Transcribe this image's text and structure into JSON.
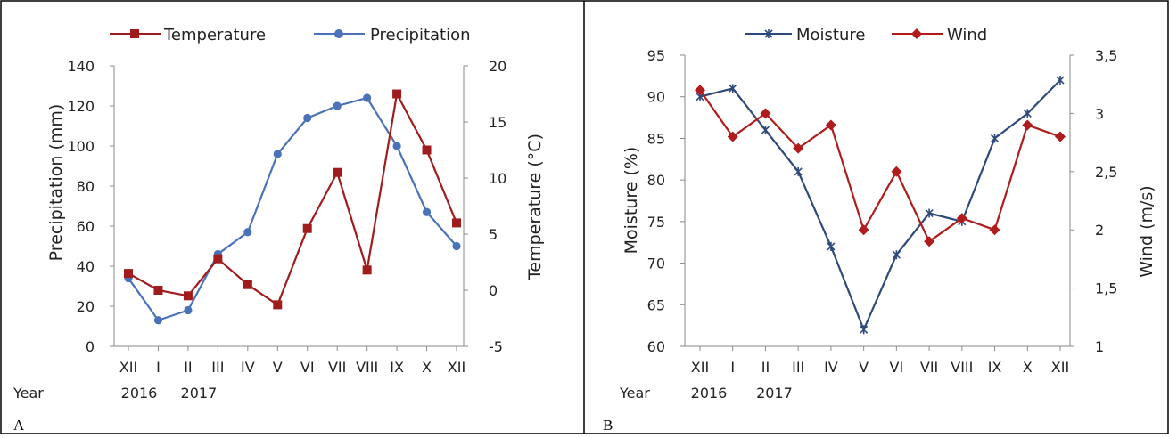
{
  "panels": [
    {
      "letter": "A",
      "legend": [
        {
          "label": "Temperature",
          "color": "#A01C1C",
          "marker": "square"
        },
        {
          "label": "Precipitation",
          "color": "#4A72B8",
          "marker": "circle"
        }
      ],
      "left_axis": {
        "title": "Precipitation (mm)",
        "ticks": [
          "0",
          "20",
          "40",
          "60",
          "80",
          "100",
          "120",
          "140"
        ]
      },
      "right_axis": {
        "title": "Temperature (°C)",
        "ticks": [
          "-5",
          "0",
          "5",
          "10",
          "15",
          "20"
        ]
      },
      "months": [
        "XII",
        "I",
        "II",
        "III",
        "IV",
        "V",
        "VI",
        "VII",
        "VIII",
        "IX",
        "X",
        "XII"
      ],
      "year_label": "Year",
      "years": [
        {
          "label": "2016",
          "at": 0
        },
        {
          "label": "2017",
          "at": 2
        }
      ]
    },
    {
      "letter": "B",
      "legend": [
        {
          "label": "Moisture",
          "color": "#2E4A7A",
          "marker": "star"
        },
        {
          "label": "Wind",
          "color": "#B01C1C",
          "marker": "diamond"
        }
      ],
      "left_axis": {
        "title": "Moisture (%)",
        "ticks": [
          "60",
          "65",
          "70",
          "75",
          "80",
          "85",
          "90",
          "95"
        ]
      },
      "right_axis": {
        "title": "Wind (m/s)",
        "ticks": [
          "1",
          "1,5",
          "2",
          "2,5",
          "3",
          "3,5"
        ]
      },
      "months": [
        "XII",
        "I",
        "II",
        "III",
        "IV",
        "V",
        "VI",
        "VII",
        "VIII",
        "IX",
        "X",
        "XII"
      ],
      "year_label": "Year",
      "years": [
        {
          "label": "2016",
          "at": 0
        },
        {
          "label": "2017",
          "at": 2
        }
      ]
    }
  ],
  "chart_data": [
    {
      "type": "line",
      "categories": [
        "XII",
        "I",
        "II",
        "III",
        "IV",
        "V",
        "VI",
        "VII",
        "VIII",
        "IX",
        "X",
        "XII"
      ],
      "series": [
        {
          "name": "Precipitation",
          "axis": "left",
          "color": "#4A72B8",
          "marker": "circle",
          "values": [
            34,
            13,
            18,
            46,
            57,
            96,
            114,
            120,
            124,
            100,
            67,
            50
          ]
        },
        {
          "name": "Temperature",
          "axis": "right",
          "color": "#A01C1C",
          "marker": "square",
          "values": [
            1.5,
            0,
            -0.5,
            2.8,
            0.5,
            -1.3,
            5.5,
            10.5,
            1.8,
            17.5,
            12.5,
            6
          ]
        }
      ],
      "ylabel": "Precipitation (mm)",
      "ylim": [
        0,
        140
      ],
      "y2label": "Temperature (°C)",
      "y2lim": [
        -5,
        20
      ],
      "xlabel": "Year",
      "grid": false,
      "legend": "top"
    },
    {
      "type": "line",
      "categories": [
        "XII",
        "I",
        "II",
        "III",
        "IV",
        "V",
        "VI",
        "VII",
        "VIII",
        "IX",
        "X",
        "XII"
      ],
      "series": [
        {
          "name": "Moisture",
          "axis": "left",
          "color": "#2E4A7A",
          "marker": "star",
          "values": [
            90,
            91,
            86,
            81,
            72,
            62,
            71,
            76,
            75,
            85,
            88,
            92
          ]
        },
        {
          "name": "Wind",
          "axis": "right",
          "color": "#B01C1C",
          "marker": "diamond",
          "values": [
            3.2,
            2.8,
            3.0,
            2.7,
            2.9,
            2.0,
            2.5,
            1.9,
            2.1,
            2.0,
            2.9,
            2.8
          ]
        }
      ],
      "ylabel": "Moisture (%)",
      "ylim": [
        60,
        95
      ],
      "y2label": "Wind (m/s)",
      "y2lim": [
        1,
        3.5
      ],
      "xlabel": "Year",
      "grid": false,
      "legend": "top"
    }
  ]
}
